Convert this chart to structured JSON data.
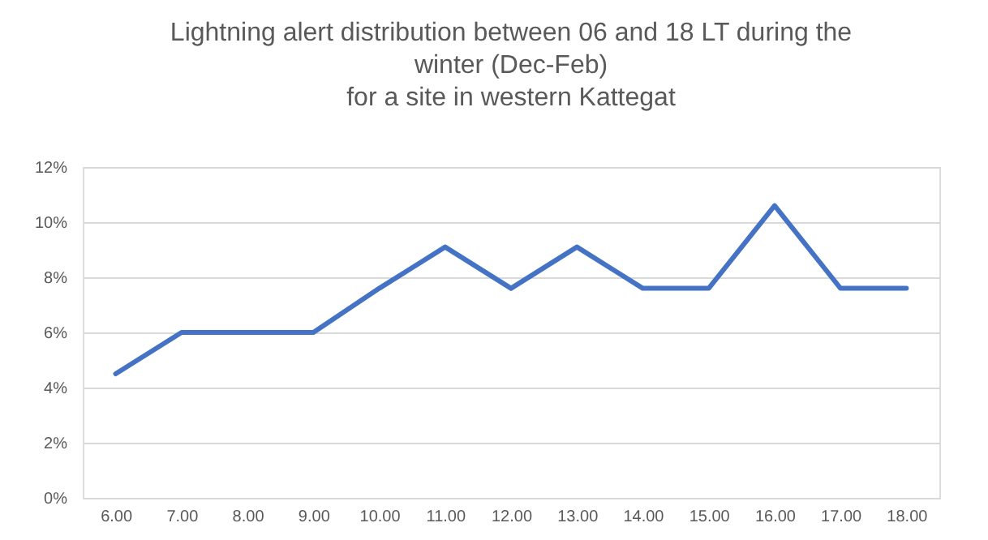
{
  "chart_data": {
    "type": "line",
    "title": [
      "Lightning alert distribution between 06 and 18 LT during the",
      "winter (Dec-Feb)",
      "for a site in western Kattegat"
    ],
    "categories": [
      "6.00",
      "7.00",
      "8.00",
      "9.00",
      "10.00",
      "11.00",
      "12.00",
      "13.00",
      "14.00",
      "15.00",
      "16.00",
      "17.00",
      "18.00"
    ],
    "series": [
      {
        "color": "#4472c4",
        "values": [
          4.5,
          6.0,
          6.0,
          6.0,
          7.6,
          9.1,
          7.6,
          9.1,
          7.6,
          7.6,
          10.6,
          7.6,
          7.6
        ]
      }
    ],
    "ylim": [
      0,
      12
    ],
    "yticks": [
      {
        "value": 0,
        "label": "0%"
      },
      {
        "value": 2,
        "label": "2%"
      },
      {
        "value": 4,
        "label": "4%"
      },
      {
        "value": 6,
        "label": "6%"
      },
      {
        "value": 8,
        "label": "8%"
      },
      {
        "value": 10,
        "label": "10%"
      },
      {
        "value": 12,
        "label": "12%"
      }
    ],
    "grid": "y",
    "marker": "none",
    "line_style": "solid"
  }
}
